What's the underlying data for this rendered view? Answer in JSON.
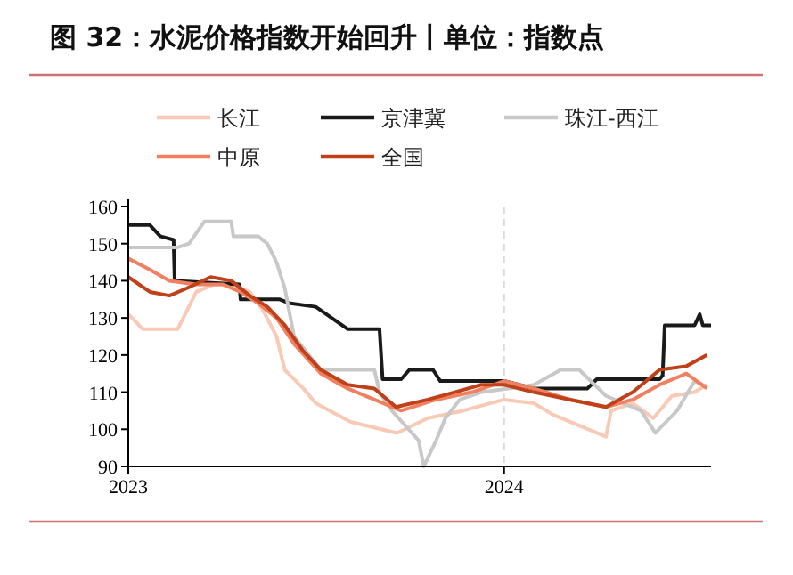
{
  "chart_data": {
    "type": "line",
    "title": "图 32：水泥价格指数开始回升丨单位：指数点",
    "xlim": [
      "2023-01-01",
      "2024-07-20"
    ],
    "xticks": [
      "2023",
      "2024"
    ],
    "ylim": [
      90,
      160
    ],
    "yticks": [
      90,
      100,
      110,
      120,
      130,
      140,
      150,
      160
    ],
    "legend": "top",
    "marker": "none",
    "line_style": "solid",
    "ref_lines": [
      {
        "axis": "x",
        "value": "2024",
        "color": "#d9d9d9",
        "line_style": "dashed"
      }
    ],
    "series": [
      {
        "name": "长江",
        "color": "#f8c9b4",
        "x": [
          "2023-01-01",
          "2023-01-15",
          "2023-02-18",
          "2023-02-27",
          "2023-03-08",
          "2023-03-25",
          "2023-04-11",
          "2023-04-29",
          "2023-05-12",
          "2023-05-25",
          "2023-06-02",
          "2023-06-20",
          "2023-07-02",
          "2023-08-05",
          "2023-09-19",
          "2023-10-19",
          "2023-11-22",
          "2024-01-01",
          "2024-01-30",
          "2024-02-17",
          "2024-04-09",
          "2024-04-14",
          "2024-05-05",
          "2024-05-25",
          "2024-06-12",
          "2024-07-04",
          "2024-07-16"
        ],
        "values": [
          131,
          127,
          127,
          132,
          137,
          139,
          139,
          137,
          132,
          125,
          116,
          111,
          107,
          102,
          99,
          103,
          105,
          108,
          107,
          104,
          98,
          105,
          107,
          103,
          109,
          110,
          112
        ]
      },
      {
        "name": "京津冀",
        "color": "#1a1a1a",
        "x": [
          "2023-01-01",
          "2023-01-22",
          "2023-02-01",
          "2023-02-14",
          "2023-02-15",
          "2023-04-19",
          "2023-04-20",
          "2023-05-28",
          "2023-06-06",
          "2023-07-02",
          "2023-08-02",
          "2023-09-02",
          "2023-09-05",
          "2023-09-23",
          "2023-10-01",
          "2023-10-24",
          "2023-10-31",
          "2024-01-01",
          "2024-01-30",
          "2024-03-22",
          "2024-03-31",
          "2024-05-31",
          "2024-06-03",
          "2024-06-05",
          "2024-07-04",
          "2024-07-09",
          "2024-07-12",
          "2024-07-20"
        ],
        "values": [
          155,
          155,
          152,
          151,
          140,
          139,
          135,
          135,
          134,
          133,
          127,
          127,
          113.5,
          113.5,
          116,
          116,
          113,
          113,
          111,
          111,
          113.5,
          113.5,
          114.5,
          128,
          128,
          131,
          128,
          128
        ]
      },
      {
        "name": "珠江-西江",
        "color": "#c8c8c8",
        "x": [
          "2023-01-01",
          "2023-02-18",
          "2023-03-01",
          "2023-03-16",
          "2023-04-11",
          "2023-04-13",
          "2023-05-07",
          "2023-05-16",
          "2023-05-25",
          "2023-06-02",
          "2023-06-11",
          "2023-07-07",
          "2023-08-28",
          "2023-09-02",
          "2023-09-14",
          "2023-10-10",
          "2023-10-15",
          "2023-10-27",
          "2023-11-05",
          "2023-11-19",
          "2023-12-10",
          "2024-01-05",
          "2024-01-30",
          "2024-02-25",
          "2024-03-14",
          "2024-04-09",
          "2024-05-13",
          "2024-05-27",
          "2024-06-17",
          "2024-07-04",
          "2024-07-16"
        ],
        "values": [
          149,
          149,
          150,
          156,
          156,
          152,
          152,
          150,
          145,
          138,
          125,
          116,
          116,
          110,
          105,
          97,
          90,
          97,
          103,
          108,
          110,
          111,
          112,
          116,
          116,
          109,
          105,
          99,
          105,
          113,
          111.5
        ]
      },
      {
        "name": "中原",
        "color": "#f08060",
        "x": [
          "2023-01-01",
          "2023-01-22",
          "2023-02-10",
          "2023-03-08",
          "2023-04-03",
          "2023-04-20",
          "2023-05-07",
          "2023-05-25",
          "2023-06-11",
          "2023-07-07",
          "2023-08-02",
          "2023-08-28",
          "2023-09-23",
          "2023-10-27",
          "2023-12-01",
          "2024-01-01",
          "2024-01-30",
          "2024-03-05",
          "2024-04-09",
          "2024-05-05",
          "2024-05-31",
          "2024-06-26",
          "2024-07-16"
        ],
        "values": [
          146,
          143,
          140,
          139,
          139,
          137,
          134,
          130,
          123,
          115,
          111,
          108,
          105,
          108,
          110,
          113,
          111,
          108,
          106,
          108,
          112,
          115,
          111
        ]
      },
      {
        "name": "全国",
        "color": "#c0401a",
        "x": [
          "2023-01-01",
          "2023-01-22",
          "2023-02-10",
          "2023-02-27",
          "2023-03-22",
          "2023-04-11",
          "2023-04-29",
          "2023-05-16",
          "2023-06-02",
          "2023-06-20",
          "2023-07-07",
          "2023-08-02",
          "2023-08-28",
          "2023-09-18",
          "2023-10-19",
          "2023-11-14",
          "2023-12-10",
          "2024-01-01",
          "2024-01-30",
          "2024-03-05",
          "2024-04-09",
          "2024-05-05",
          "2024-05-31",
          "2024-06-26",
          "2024-07-16"
        ],
        "values": [
          141,
          137,
          136,
          138,
          141,
          140,
          136,
          133,
          128,
          121,
          116,
          112,
          111,
          106,
          108,
          110,
          112,
          112,
          110,
          108,
          106,
          110,
          116,
          117,
          120
        ]
      }
    ]
  }
}
